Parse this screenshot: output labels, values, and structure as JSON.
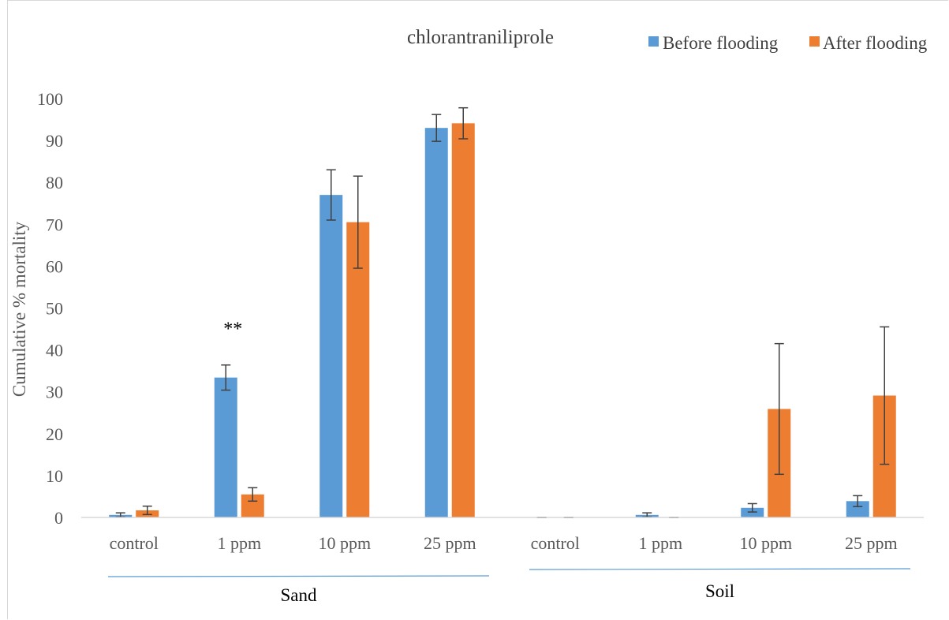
{
  "chart_data": {
    "type": "bar",
    "title": "chlorantraniliprole",
    "ylabel": "Cumulative % mortality",
    "xlabel": "",
    "ylim": [
      0,
      100
    ],
    "yticks": [
      0,
      10,
      20,
      30,
      40,
      50,
      60,
      70,
      80,
      90,
      100
    ],
    "categories": [
      "control",
      "1 ppm",
      "10 ppm",
      "25 ppm",
      "control",
      "1 ppm",
      "10 ppm",
      "25 ppm"
    ],
    "groups": [
      {
        "label": "Sand",
        "categories": [
          0,
          1,
          2,
          3
        ]
      },
      {
        "label": "Soil",
        "categories": [
          4,
          5,
          6,
          7
        ]
      }
    ],
    "series": [
      {
        "name": "Before flooding",
        "color": "#5b9bd5",
        "values": [
          0.6,
          33.4,
          77.0,
          93.0,
          0.0,
          0.6,
          2.3,
          3.9
        ],
        "errors": [
          0.5,
          3.0,
          6.0,
          3.2,
          0.0,
          0.5,
          1.0,
          1.3
        ]
      },
      {
        "name": "After flooding",
        "color": "#ed7d31",
        "values": [
          1.7,
          5.5,
          70.5,
          94.1,
          0.0,
          0.0,
          25.9,
          29.1
        ],
        "errors": [
          1.0,
          1.6,
          11.0,
          3.7,
          0.0,
          0.0,
          15.6,
          16.4
        ]
      }
    ],
    "annotations": [
      {
        "text": "**",
        "category": 1,
        "series": 0
      }
    ],
    "legend": "top-right",
    "grid": false
  }
}
